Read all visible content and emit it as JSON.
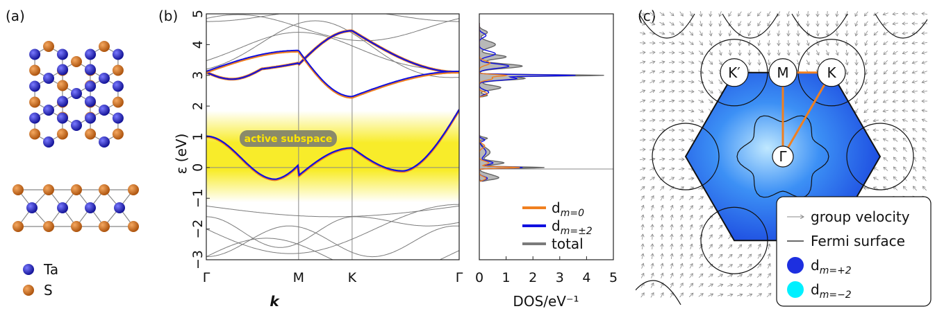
{
  "panel_labels": {
    "a": "(a)",
    "b": "(b)",
    "c": "(c)"
  },
  "crystal": {
    "atoms": [
      {
        "symbol": "Ta",
        "color": "#1a1aa8"
      },
      {
        "symbol": "S",
        "color": "#c8640f"
      }
    ]
  },
  "bands": {
    "ylabel": "ε (eV)",
    "xlabel": "k",
    "k_ticks": [
      "Γ",
      "M",
      "K",
      "Γ"
    ],
    "y_ticks": [
      "−3",
      "−2",
      "−1",
      "0",
      "1",
      "2",
      "3",
      "4",
      "5"
    ],
    "active_label": "active subspace",
    "colors": {
      "dm0": "#f08020",
      "dm2": "#1010e0",
      "total": "#7a7a7a",
      "active": "#f5e400"
    }
  },
  "dos": {
    "xlabel": "DOS/eV⁻¹",
    "x_ticks": [
      "0",
      "1",
      "2",
      "3",
      "4",
      "5"
    ],
    "legend": [
      {
        "label": "d_{m=0}",
        "main": "d",
        "sub": "m=0",
        "color": "#f08020"
      },
      {
        "label": "d_{m=±2}",
        "main": "d",
        "sub": "m=±2",
        "color": "#1010e0"
      },
      {
        "label": "total",
        "main": "total",
        "sub": "",
        "color": "#7a7a7a"
      }
    ]
  },
  "bz": {
    "points": {
      "Kp": "K′",
      "M": "M",
      "K": "K",
      "G": "Γ"
    },
    "legend": [
      {
        "kind": "arrow",
        "label": "group velocity"
      },
      {
        "kind": "line",
        "label": "Fermi surface"
      },
      {
        "kind": "dot",
        "main": "d",
        "sub": "m=+2",
        "color": "#1d2fe0"
      },
      {
        "kind": "dot",
        "main": "d",
        "sub": "m=−2",
        "color": "#00f0ff"
      }
    ]
  },
  "chart_data": [
    {
      "type": "line",
      "title": "",
      "xlabel": "k",
      "ylabel": "ε (eV)",
      "ylim": [
        -3,
        5
      ],
      "x_ticks": [
        "Γ",
        "M",
        "K",
        "Γ"
      ],
      "series": [
        {
          "name": "d_{m=0}",
          "x": [
            0,
            1,
            1.58,
            2.74
          ],
          "values": [
            1.0,
            -0.28,
            0.62,
            1.0
          ]
        },
        {
          "name": "d_{m=±2}",
          "x": [
            0,
            1,
            1.58,
            2.74
          ],
          "values": [
            3.1,
            3.35,
            4.45,
            3.1
          ]
        }
      ]
    },
    {
      "type": "area",
      "xlabel": "DOS/eV⁻¹",
      "xlim": [
        0,
        5
      ],
      "series": [
        {
          "name": "total",
          "peak_dos": 4.3,
          "peak_energy": 3.0
        },
        {
          "name": "d_{m=±2}",
          "peak_dos": 3.3,
          "peak_energy": 3.0
        },
        {
          "name": "d_{m=0}",
          "peak_dos": 1.5,
          "peak_energy": 0.0
        }
      ]
    }
  ]
}
